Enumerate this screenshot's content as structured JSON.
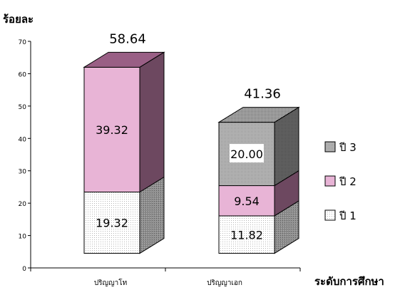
{
  "chart_data": {
    "type": "bar",
    "stacked": true,
    "style": "3d",
    "ylabel": "ร้อยละ",
    "xlabel": "ระดับการศึกษา",
    "ylim": [
      0,
      70
    ],
    "yticks": [
      0,
      10,
      20,
      30,
      40,
      50,
      60,
      70
    ],
    "categories": [
      "ปริญญาโท",
      "ปริญญาเอก"
    ],
    "totals": [
      "58.64",
      "41.36"
    ],
    "series": [
      {
        "name": "ปี 1",
        "values": [
          19.32,
          11.82
        ],
        "labels": [
          "19.32",
          "11.82"
        ],
        "color": "#ffffff",
        "pattern": "dots-light"
      },
      {
        "name": "ปี 2",
        "values": [
          39.32,
          9.54
        ],
        "labels": [
          "39.32",
          "9.54"
        ],
        "color": "#e8b4d6",
        "pattern": "solid"
      },
      {
        "name": "ปี 3",
        "values": [
          null,
          20.0
        ],
        "labels": [
          "",
          "20.00"
        ],
        "color": "#bdbdbd",
        "pattern": "dots-dense"
      }
    ],
    "legend": {
      "position": "right",
      "order": [
        2,
        1,
        0
      ]
    },
    "grid": false
  }
}
